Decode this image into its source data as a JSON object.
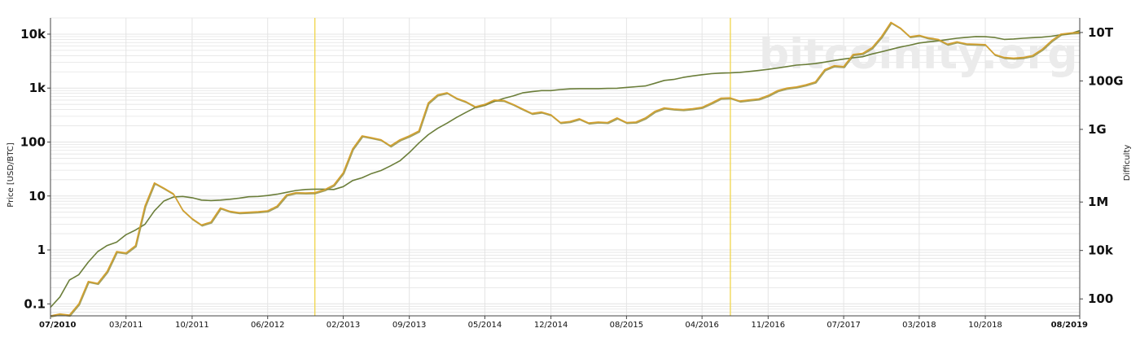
{
  "chart_data": {
    "type": "line",
    "watermark": "bitcoinity.org",
    "ylabel_left": "Price [USD/BTC]",
    "ylabel_right": "Difficulty",
    "y_scale": "log",
    "y_left_range": [
      0.06,
      20000
    ],
    "y_right_range": [
      20,
      40000000000000
    ],
    "y_left_ticks": [
      {
        "label": "10k",
        "value": 10000
      },
      {
        "label": "1k",
        "value": 1000
      },
      {
        "label": "100",
        "value": 100
      },
      {
        "label": "10",
        "value": 10
      },
      {
        "label": "1",
        "value": 1
      },
      {
        "label": "0.1",
        "value": 0.1
      }
    ],
    "y_right_ticks": [
      {
        "label": "10T",
        "value": 10000000000000
      },
      {
        "label": "100G",
        "value": 100000000000
      },
      {
        "label": "1G",
        "value": 1000000000
      },
      {
        "label": "1M",
        "value": 1000000
      },
      {
        "label": "10k",
        "value": 10000
      },
      {
        "label": "100",
        "value": 100
      }
    ],
    "x_range": [
      "2010-07",
      "2019-08"
    ],
    "x_ticks": [
      {
        "label": "07/2010",
        "date": "2010-07",
        "bold": true
      },
      {
        "label": "03/2011",
        "date": "2011-03"
      },
      {
        "label": "10/2011",
        "date": "2011-10"
      },
      {
        "label": "06/2012",
        "date": "2012-06"
      },
      {
        "label": "02/2013",
        "date": "2013-02"
      },
      {
        "label": "09/2013",
        "date": "2013-09"
      },
      {
        "label": "05/2014",
        "date": "2014-05"
      },
      {
        "label": "12/2014",
        "date": "2014-12"
      },
      {
        "label": "08/2015",
        "date": "2015-08"
      },
      {
        "label": "04/2016",
        "date": "2016-04"
      },
      {
        "label": "11/2016",
        "date": "2016-11"
      },
      {
        "label": "07/2017",
        "date": "2017-07"
      },
      {
        "label": "03/2018",
        "date": "2018-03"
      },
      {
        "label": "10/2018",
        "date": "2018-10"
      },
      {
        "label": "08/2019",
        "date": "2019-08",
        "bold": true
      }
    ],
    "halving_markers": [
      "2012-11",
      "2016-07"
    ],
    "grid": true,
    "colors": {
      "price": "#d4a02e",
      "price_shadow": "#8a8a3a",
      "difficulty": "#6b7e3a",
      "halving": "#f0d54a",
      "grid": "#e4e4e4"
    },
    "series": [
      {
        "key": "price",
        "axis": "left",
        "points": [
          [
            "2010-07",
            0.06
          ],
          [
            "2010-08",
            0.065
          ],
          [
            "2010-09",
            0.062
          ],
          [
            "2010-10",
            0.1
          ],
          [
            "2010-11",
            0.26
          ],
          [
            "2010-12",
            0.24
          ],
          [
            "2011-01",
            0.4
          ],
          [
            "2011-02",
            0.93
          ],
          [
            "2011-03",
            0.88
          ],
          [
            "2011-04",
            1.2
          ],
          [
            "2011-05",
            6.5
          ],
          [
            "2011-06",
            17.5
          ],
          [
            "2011-07",
            14
          ],
          [
            "2011-08",
            11
          ],
          [
            "2011-09",
            5.5
          ],
          [
            "2011-10",
            3.8
          ],
          [
            "2011-11",
            2.9
          ],
          [
            "2011-12",
            3.3
          ],
          [
            "2012-01",
            6
          ],
          [
            "2012-02",
            5.2
          ],
          [
            "2012-03",
            4.9
          ],
          [
            "2012-04",
            5
          ],
          [
            "2012-05",
            5.1
          ],
          [
            "2012-06",
            5.3
          ],
          [
            "2012-07",
            6.5
          ],
          [
            "2012-08",
            10.5
          ],
          [
            "2012-09",
            11.5
          ],
          [
            "2012-10",
            11.4
          ],
          [
            "2012-11",
            11.5
          ],
          [
            "2012-12",
            13
          ],
          [
            "2013-01",
            16
          ],
          [
            "2013-02",
            27
          ],
          [
            "2013-03",
            75
          ],
          [
            "2013-04",
            130
          ],
          [
            "2013-05",
            120
          ],
          [
            "2013-06",
            110
          ],
          [
            "2013-07",
            85
          ],
          [
            "2013-08",
            110
          ],
          [
            "2013-09",
            130
          ],
          [
            "2013-10",
            160
          ],
          [
            "2013-11",
            530
          ],
          [
            "2013-12",
            750
          ],
          [
            "2014-01",
            820
          ],
          [
            "2014-02",
            650
          ],
          [
            "2014-03",
            560
          ],
          [
            "2014-04",
            450
          ],
          [
            "2014-05",
            500
          ],
          [
            "2014-06",
            600
          ],
          [
            "2014-07",
            590
          ],
          [
            "2014-08",
            500
          ],
          [
            "2014-09",
            410
          ],
          [
            "2014-10",
            340
          ],
          [
            "2014-11",
            360
          ],
          [
            "2014-12",
            320
          ],
          [
            "2015-01",
            230
          ],
          [
            "2015-02",
            240
          ],
          [
            "2015-03",
            270
          ],
          [
            "2015-04",
            225
          ],
          [
            "2015-05",
            235
          ],
          [
            "2015-06",
            230
          ],
          [
            "2015-07",
            280
          ],
          [
            "2015-08",
            230
          ],
          [
            "2015-09",
            235
          ],
          [
            "2015-10",
            280
          ],
          [
            "2015-11",
            370
          ],
          [
            "2015-12",
            430
          ],
          [
            "2016-01",
            410
          ],
          [
            "2016-02",
            400
          ],
          [
            "2016-03",
            415
          ],
          [
            "2016-04",
            440
          ],
          [
            "2016-05",
            530
          ],
          [
            "2016-06",
            650
          ],
          [
            "2016-07",
            660
          ],
          [
            "2016-08",
            575
          ],
          [
            "2016-09",
            605
          ],
          [
            "2016-10",
            630
          ],
          [
            "2016-11",
            730
          ],
          [
            "2016-12",
            900
          ],
          [
            "2017-01",
            1000
          ],
          [
            "2017-02",
            1050
          ],
          [
            "2017-03",
            1150
          ],
          [
            "2017-04",
            1300
          ],
          [
            "2017-05",
            2200
          ],
          [
            "2017-06",
            2600
          ],
          [
            "2017-07",
            2500
          ],
          [
            "2017-08",
            4200
          ],
          [
            "2017-09",
            4400
          ],
          [
            "2017-10",
            5600
          ],
          [
            "2017-11",
            9000
          ],
          [
            "2017-12",
            16500
          ],
          [
            "2018-01",
            13000
          ],
          [
            "2018-02",
            9000
          ],
          [
            "2018-03",
            9500
          ],
          [
            "2018-04",
            8500
          ],
          [
            "2018-05",
            8000
          ],
          [
            "2018-06",
            6500
          ],
          [
            "2018-07",
            7200
          ],
          [
            "2018-08",
            6600
          ],
          [
            "2018-09",
            6500
          ],
          [
            "2018-10",
            6400
          ],
          [
            "2018-11",
            4200
          ],
          [
            "2018-12",
            3700
          ],
          [
            "2019-01",
            3600
          ],
          [
            "2019-02",
            3700
          ],
          [
            "2019-03",
            4000
          ],
          [
            "2019-04",
            5200
          ],
          [
            "2019-05",
            7500
          ],
          [
            "2019-06",
            10000
          ],
          [
            "2019-07",
            10500
          ],
          [
            "2019-08",
            10800
          ]
        ]
      },
      {
        "key": "difficulty",
        "axis": "right",
        "points": [
          [
            "2010-07",
            45
          ],
          [
            "2010-08",
            120
          ],
          [
            "2010-09",
            600
          ],
          [
            "2010-10",
            1000
          ],
          [
            "2010-11",
            3300
          ],
          [
            "2010-12",
            9000
          ],
          [
            "2011-01",
            16000
          ],
          [
            "2011-02",
            22000
          ],
          [
            "2011-03",
            45000
          ],
          [
            "2011-04",
            70000
          ],
          [
            "2011-05",
            120000
          ],
          [
            "2011-06",
            430000
          ],
          [
            "2011-07",
            1100000
          ],
          [
            "2011-08",
            1600000
          ],
          [
            "2011-09",
            1700000
          ],
          [
            "2011-10",
            1500000
          ],
          [
            "2011-11",
            1200000
          ],
          [
            "2011-12",
            1150000
          ],
          [
            "2012-01",
            1200000
          ],
          [
            "2012-02",
            1300000
          ],
          [
            "2012-03",
            1450000
          ],
          [
            "2012-04",
            1650000
          ],
          [
            "2012-05",
            1700000
          ],
          [
            "2012-06",
            1850000
          ],
          [
            "2012-07",
            2100000
          ],
          [
            "2012-08",
            2500000
          ],
          [
            "2012-09",
            3000000
          ],
          [
            "2012-10",
            3300000
          ],
          [
            "2012-11",
            3400000
          ],
          [
            "2012-12",
            3400000
          ],
          [
            "2013-01",
            3300000
          ],
          [
            "2013-02",
            4300000
          ],
          [
            "2013-03",
            7700000
          ],
          [
            "2013-04",
            10000000
          ],
          [
            "2013-05",
            15000000
          ],
          [
            "2013-06",
            20000000
          ],
          [
            "2013-07",
            31000000
          ],
          [
            "2013-08",
            50000000
          ],
          [
            "2013-09",
            110000000
          ],
          [
            "2013-10",
            270000000
          ],
          [
            "2013-11",
            600000000
          ],
          [
            "2013-12",
            1100000000
          ],
          [
            "2014-01",
            1800000000
          ],
          [
            "2014-02",
            3100000000
          ],
          [
            "2014-03",
            5000000000
          ],
          [
            "2014-04",
            8000000000
          ],
          [
            "2014-05",
            10000000000
          ],
          [
            "2014-06",
            14000000000
          ],
          [
            "2014-07",
            19000000000
          ],
          [
            "2014-08",
            24000000000
          ],
          [
            "2014-09",
            32000000000
          ],
          [
            "2014-10",
            36000000000
          ],
          [
            "2014-11",
            40000000000
          ],
          [
            "2014-12",
            40000000000
          ],
          [
            "2015-01",
            44000000000
          ],
          [
            "2015-02",
            47000000000
          ],
          [
            "2015-03",
            48000000000
          ],
          [
            "2015-04",
            48000000000
          ],
          [
            "2015-05",
            48000000000
          ],
          [
            "2015-06",
            49000000000
          ],
          [
            "2015-07",
            50000000000
          ],
          [
            "2015-08",
            54000000000
          ],
          [
            "2015-09",
            58000000000
          ],
          [
            "2015-10",
            62000000000
          ],
          [
            "2015-11",
            80000000000
          ],
          [
            "2015-12",
            105000000000
          ],
          [
            "2016-01",
            115000000000
          ],
          [
            "2016-02",
            140000000000
          ],
          [
            "2016-03",
            160000000000
          ],
          [
            "2016-04",
            180000000000
          ],
          [
            "2016-05",
            200000000000
          ],
          [
            "2016-06",
            210000000000
          ],
          [
            "2016-07",
            215000000000
          ],
          [
            "2016-08",
            225000000000
          ],
          [
            "2016-09",
            245000000000
          ],
          [
            "2016-10",
            270000000000
          ],
          [
            "2016-11",
            300000000000
          ],
          [
            "2016-12",
            340000000000
          ],
          [
            "2017-01",
            390000000000
          ],
          [
            "2017-02",
            450000000000
          ],
          [
            "2017-03",
            480000000000
          ],
          [
            "2017-04",
            520000000000
          ],
          [
            "2017-05",
            600000000000
          ],
          [
            "2017-06",
            700000000000
          ],
          [
            "2017-07",
            800000000000
          ],
          [
            "2017-08",
            900000000000
          ],
          [
            "2017-09",
            1000000000000
          ],
          [
            "2017-10",
            1300000000000
          ],
          [
            "2017-11",
            1600000000000
          ],
          [
            "2017-12",
            2000000000000
          ],
          [
            "2018-01",
            2500000000000
          ],
          [
            "2018-02",
            3000000000000
          ],
          [
            "2018-03",
            3700000000000
          ],
          [
            "2018-04",
            4100000000000
          ],
          [
            "2018-05",
            4500000000000
          ],
          [
            "2018-06",
            5100000000000
          ],
          [
            "2018-07",
            5800000000000
          ],
          [
            "2018-08",
            6300000000000
          ],
          [
            "2018-09",
            6800000000000
          ],
          [
            "2018-10",
            6700000000000
          ],
          [
            "2018-11",
            6200000000000
          ],
          [
            "2018-12",
            5200000000000
          ],
          [
            "2019-01",
            5400000000000
          ],
          [
            "2019-02",
            5800000000000
          ],
          [
            "2019-03",
            6100000000000
          ],
          [
            "2019-04",
            6400000000000
          ],
          [
            "2019-05",
            7000000000000
          ],
          [
            "2019-06",
            8000000000000
          ],
          [
            "2019-07",
            9000000000000
          ],
          [
            "2019-08",
            12000000000000
          ]
        ]
      }
    ]
  }
}
